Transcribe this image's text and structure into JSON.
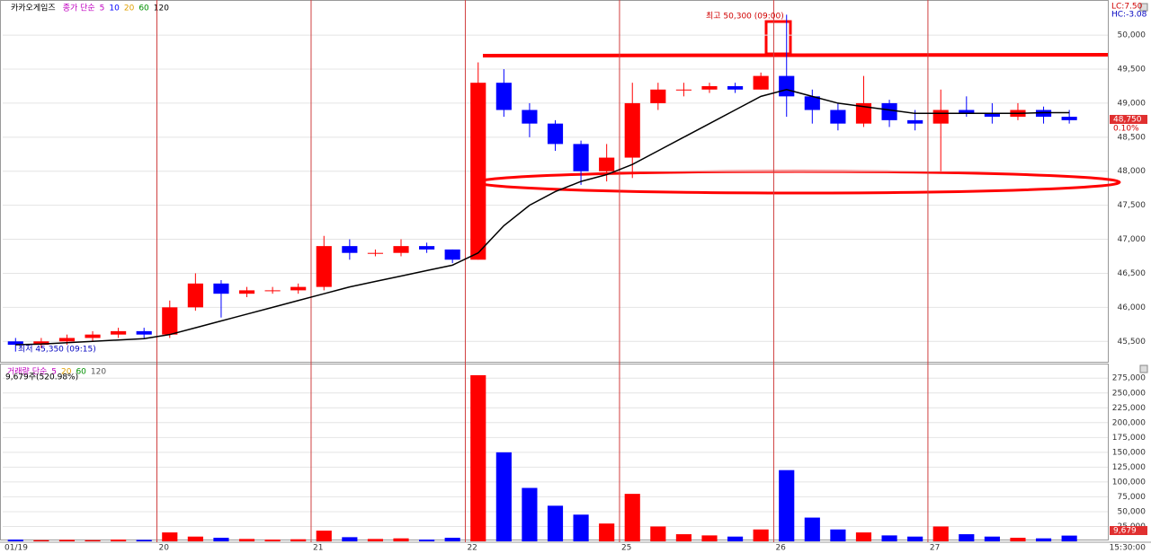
{
  "chart_data": [
    {
      "type": "candlestick",
      "name": "카카오게임즈",
      "legend": [
        {
          "text": "종가 단순",
          "color": "#c000c0"
        },
        {
          "text": "5",
          "color": "#c000c0"
        },
        {
          "text": "10",
          "color": "#0000ff"
        },
        {
          "text": "20",
          "color": "#e0a000"
        },
        {
          "text": "60",
          "color": "#009000"
        },
        {
          "text": "120",
          "color": "#000000"
        }
      ],
      "up_color": "#ff0000",
      "down_color": "#0000ff",
      "open": [
        45500,
        45450,
        45500,
        45550,
        45600,
        45650,
        45600,
        46000,
        46350,
        46200,
        46250,
        46250,
        46300,
        46900,
        46800,
        46800,
        46900,
        46850,
        46700,
        49300,
        48900,
        48700,
        48400,
        48000,
        48200,
        49000,
        49200,
        49200,
        49250,
        49200,
        49400,
        49100,
        48900,
        48700,
        49000,
        48750,
        48700,
        48900,
        48850,
        48800,
        48900,
        48800
      ],
      "high": [
        45550,
        45550,
        45600,
        45650,
        45700,
        45700,
        46100,
        46500,
        46400,
        46300,
        46300,
        46350,
        47050,
        47000,
        46850,
        47000,
        46950,
        46850,
        49600,
        49500,
        49000,
        48750,
        48450,
        48400,
        49300,
        49300,
        49300,
        49300,
        49300,
        49450,
        50300,
        49200,
        49000,
        49400,
        49050,
        48900,
        49200,
        49100,
        49000,
        49000,
        48950,
        48900
      ],
      "low": [
        45350,
        45400,
        45450,
        45500,
        45550,
        45550,
        45550,
        45950,
        45850,
        46150,
        46200,
        46200,
        46250,
        46700,
        46750,
        46750,
        46800,
        46650,
        46700,
        48800,
        48500,
        48300,
        47800,
        47850,
        47900,
        48900,
        49100,
        49150,
        49150,
        49200,
        48800,
        48700,
        48600,
        48650,
        48650,
        48600,
        48000,
        48800,
        48700,
        48750,
        48700,
        48700
      ],
      "close": [
        45450,
        45500,
        45550,
        45600,
        45650,
        45600,
        46000,
        46350,
        46200,
        46250,
        46250,
        46300,
        46900,
        46800,
        46800,
        46900,
        46850,
        46700,
        49300,
        48900,
        48700,
        48400,
        48000,
        48200,
        49000,
        49200,
        49200,
        49250,
        49200,
        49400,
        49100,
        48900,
        48700,
        49000,
        48750,
        48700,
        48900,
        48850,
        48800,
        48900,
        48800,
        48750
      ],
      "ma_color": "#000000",
      "ma120": [
        45450,
        45460,
        45480,
        45500,
        45520,
        45540,
        45600,
        45700,
        45800,
        45900,
        46000,
        46100,
        46200,
        46300,
        46380,
        46460,
        46540,
        46620,
        46800,
        47200,
        47500,
        47700,
        47850,
        47950,
        48100,
        48300,
        48500,
        48700,
        48900,
        49100,
        49200,
        49100,
        49000,
        48950,
        48900,
        48850,
        48850,
        48850,
        48850,
        48850,
        48860,
        48860
      ],
      "ylim": [
        45200,
        50450
      ],
      "yticks": [
        {
          "value": 45500,
          "label": "45,500"
        },
        {
          "value": 46000,
          "label": "46,000"
        },
        {
          "value": 46500,
          "label": "46,500"
        },
        {
          "value": 47000,
          "label": "47,000"
        },
        {
          "value": 47500,
          "label": "47,500"
        },
        {
          "value": 48000,
          "label": "48,000"
        },
        {
          "value": 48500,
          "label": "48,500"
        },
        {
          "value": 49000,
          "label": "49,000"
        },
        {
          "value": 49500,
          "label": "49,500"
        },
        {
          "value": 50000,
          "label": "50,000"
        }
      ],
      "annotations": {
        "high": "최고 50,300 (09:00)",
        "low": "최저 45,350 (09:15)",
        "lc": "LC:7.50",
        "hc": "HC:-3.08",
        "last": "48,750",
        "change": "0.10%"
      }
    },
    {
      "type": "bar",
      "name": "거래량 단순",
      "legend": [
        {
          "text": "거래량 단순",
          "color": "#c000c0"
        },
        {
          "text": "5",
          "color": "#c000c0"
        },
        {
          "text": "20",
          "color": "#e0a000"
        },
        {
          "text": "60",
          "color": "#009000"
        },
        {
          "text": "120",
          "color": "#555555"
        }
      ],
      "info": "9,679주(520.98%)",
      "last_label": "9,679",
      "color": "#ff0000",
      "values": [
        3000,
        2000,
        2500,
        2000,
        3000,
        2500,
        15000,
        8000,
        6000,
        4000,
        3000,
        3500,
        18000,
        7000,
        4000,
        5000,
        3000,
        6000,
        280000,
        150000,
        90000,
        60000,
        45000,
        30000,
        80000,
        25000,
        12000,
        10000,
        8000,
        20000,
        120000,
        40000,
        20000,
        15000,
        10000,
        8000,
        25000,
        12000,
        8000,
        6000,
        5000,
        9679
      ],
      "ylim": [
        0,
        292000
      ],
      "yticks": [
        {
          "value": 25000,
          "label": "25,000"
        },
        {
          "value": 50000,
          "label": "50,000"
        },
        {
          "value": 75000,
          "label": "75,000"
        },
        {
          "value": 100000,
          "label": "100,000"
        },
        {
          "value": 125000,
          "label": "125,000"
        },
        {
          "value": 150000,
          "label": "150,000"
        },
        {
          "value": 175000,
          "label": "175,000"
        },
        {
          "value": 200000,
          "label": "200,000"
        },
        {
          "value": 225000,
          "label": "225,000"
        },
        {
          "value": 250000,
          "label": "250,000"
        },
        {
          "value": 275000,
          "label": "275,000"
        }
      ],
      "xticks": [
        {
          "value": 0,
          "label": "01/19"
        },
        {
          "value": 6,
          "label": "20"
        },
        {
          "value": 12,
          "label": "21"
        },
        {
          "value": 18,
          "label": "22"
        },
        {
          "value": 24,
          "label": "25"
        },
        {
          "value": 30,
          "label": "26"
        },
        {
          "value": 36,
          "label": "27"
        }
      ],
      "x_end_label": "15:30:00"
    }
  ]
}
